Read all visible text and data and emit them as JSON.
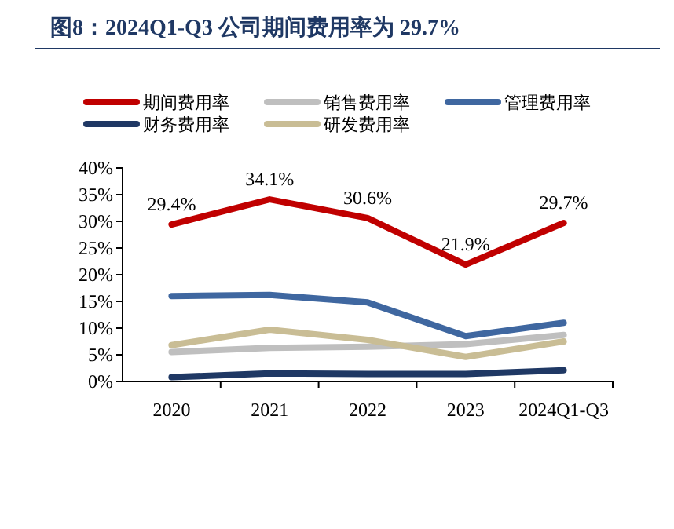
{
  "chart_data": {
    "type": "line",
    "title": "图8：2024Q1-Q3 公司期间费用率为 29.7%",
    "categories": [
      "2020",
      "2021",
      "2022",
      "2023",
      "2024Q1-Q3"
    ],
    "series": [
      {
        "name": "期间费用率",
        "color": "#c00000",
        "values": [
          29.4,
          34.1,
          30.6,
          21.9,
          29.7
        ],
        "value_labels": [
          "29.4%",
          "34.1%",
          "30.6%",
          "21.9%",
          "29.7%"
        ]
      },
      {
        "name": "销售费用率",
        "color": "#bfbfbf",
        "values": [
          5.5,
          6.3,
          6.5,
          7.0,
          8.7
        ]
      },
      {
        "name": "管理费用率",
        "color": "#3f67a0",
        "values": [
          16.0,
          16.2,
          14.8,
          8.5,
          11.0
        ]
      },
      {
        "name": "财务费用率",
        "color": "#1f3864",
        "values": [
          0.8,
          1.5,
          1.4,
          1.4,
          2.1
        ]
      },
      {
        "name": "研发费用率",
        "color": "#c9bd95",
        "values": [
          6.8,
          9.7,
          7.8,
          4.6,
          7.5
        ]
      }
    ],
    "ylim": [
      0,
      40
    ],
    "yticks": [
      {
        "value": 0,
        "label": "0%"
      },
      {
        "value": 5,
        "label": "5%"
      },
      {
        "value": 10,
        "label": "10%"
      },
      {
        "value": 15,
        "label": "15%"
      },
      {
        "value": 20,
        "label": "20%"
      },
      {
        "value": 25,
        "label": "25%"
      },
      {
        "value": 30,
        "label": "30%"
      },
      {
        "value": 35,
        "label": "35%"
      },
      {
        "value": 40,
        "label": "40%"
      }
    ],
    "legend": "top",
    "grid": false,
    "marker": "none",
    "line_style": "solid"
  }
}
